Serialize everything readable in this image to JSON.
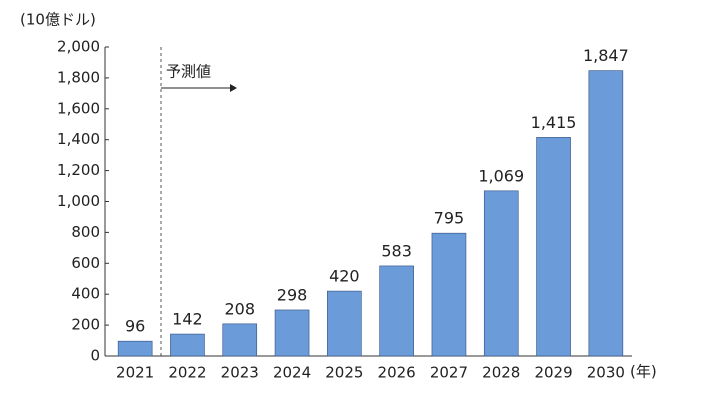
{
  "chart_data": {
    "type": "bar",
    "y_axis_label": "(10億ドル)",
    "x_axis_label": "(年)",
    "annotation": "予測値",
    "categories": [
      "2021",
      "2022",
      "2023",
      "2024",
      "2025",
      "2026",
      "2027",
      "2028",
      "2029",
      "2030"
    ],
    "values": [
      96,
      142,
      208,
      298,
      420,
      583,
      795,
      1069,
      1415,
      1847
    ],
    "value_labels": [
      "96",
      "142",
      "208",
      "298",
      "420",
      "583",
      "795",
      "1,069",
      "1,415",
      "1,847"
    ],
    "color": "#6b9bd8",
    "ylim": [
      0,
      2000
    ],
    "yticks": [
      0,
      200,
      400,
      600,
      800,
      {
        "value": 1000,
        "label": "1,000"
      },
      {
        "value": 1200,
        "label": "1,200"
      },
      {
        "value": 1400,
        "label": "1,400"
      },
      {
        "value": 1600,
        "label": "1,600"
      },
      {
        "value": 1800,
        "label": "1,800"
      },
      {
        "value": 2000,
        "label": "2,000"
      }
    ],
    "grid": false
  }
}
